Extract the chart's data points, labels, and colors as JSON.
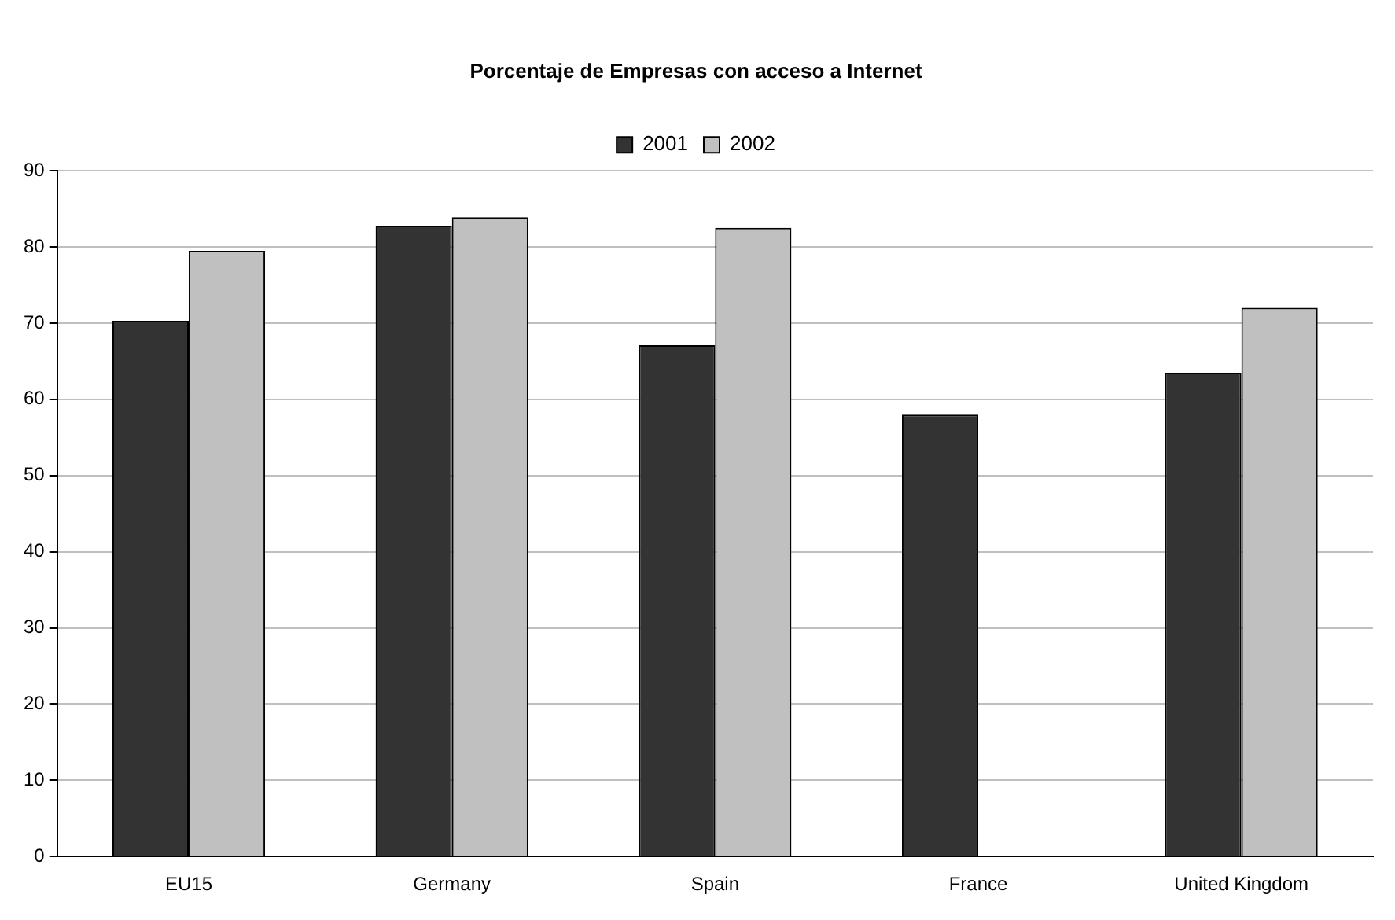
{
  "chart_data": {
    "type": "bar",
    "title": "Porcentaje de Empresas con acceso a Internet",
    "categories": [
      "EU15",
      "Germany",
      "Spain",
      "France",
      "United Kingdom"
    ],
    "series": [
      {
        "name": "2001",
        "color": "#333333",
        "values": [
          70.3,
          82.8,
          67.1,
          58.0,
          63.5
        ]
      },
      {
        "name": "2002",
        "color": "#c0c0c0",
        "values": [
          79.5,
          83.9,
          82.5,
          null,
          72.0
        ]
      }
    ],
    "ylim": [
      0,
      90
    ],
    "yticks": [
      0,
      10,
      20,
      30,
      40,
      50,
      60,
      70,
      80,
      90
    ],
    "grid": "y",
    "legend": "top"
  }
}
